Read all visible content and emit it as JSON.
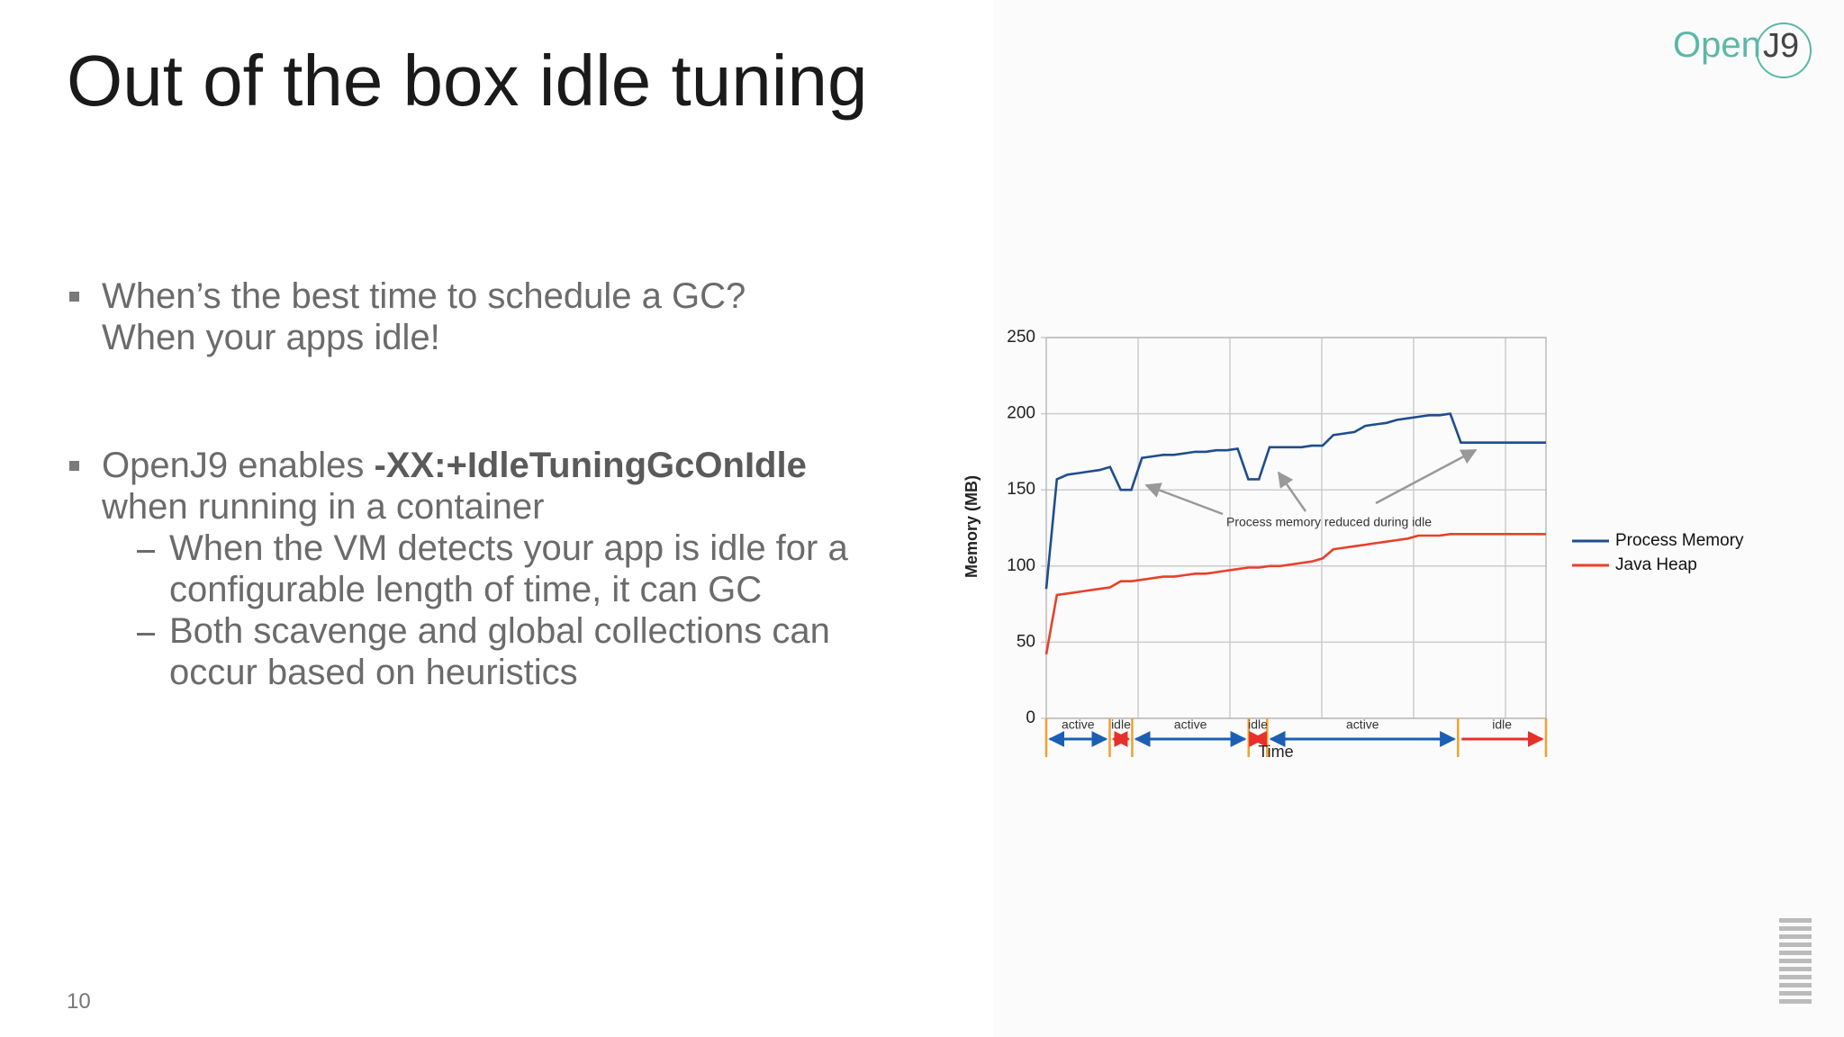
{
  "slide": {
    "title": "Out of the box idle tuning",
    "logo": {
      "text": "Open",
      "badge": "J9"
    },
    "bullet1": [
      "When’s the best time to schedule a GC?",
      "When your apps idle!"
    ],
    "bullet2": {
      "prefix": "OpenJ9 enables ",
      "code": "-XX:+IdleTuningGcOnIdle",
      "rest": "when running in a container",
      "sub": [
        "When the VM detects your app is idle for a configurable length of time, it can GC",
        "Both scavenge and global collections can occur based on heuristics"
      ]
    },
    "page_number": "10"
  },
  "chart_data": {
    "type": "line",
    "ylabel": "Memory (MB)",
    "xlabel": "Time",
    "ylim": [
      0,
      250
    ],
    "yticks": [
      0,
      50,
      100,
      150,
      200,
      250
    ],
    "grid": true,
    "legend": "right",
    "annotation": "Process memory reduced during idle",
    "phases": [
      "active",
      "idle",
      "active",
      "idle",
      "active",
      "idle"
    ],
    "series": [
      {
        "name": "Process Memory",
        "color": "#1f4e8c",
        "values": [
          85,
          157,
          160,
          161,
          162,
          163,
          165,
          150,
          150,
          171,
          172,
          173,
          173,
          174,
          175,
          175,
          176,
          176,
          177,
          157,
          157,
          178,
          178,
          178,
          178,
          179,
          179,
          186,
          187,
          188,
          192,
          193,
          194,
          196,
          197,
          198,
          199,
          199,
          200,
          181,
          181,
          181,
          181,
          181,
          181,
          181,
          181,
          181
        ]
      },
      {
        "name": "Java Heap",
        "color": "#e8402a",
        "values": [
          42,
          81,
          82,
          83,
          84,
          85,
          86,
          90,
          90,
          91,
          92,
          93,
          93,
          94,
          95,
          95,
          96,
          97,
          98,
          99,
          99,
          100,
          100,
          101,
          102,
          103,
          105,
          111,
          112,
          113,
          114,
          115,
          116,
          117,
          118,
          120,
          120,
          120,
          121,
          121,
          121,
          121,
          121,
          121,
          121,
          121,
          121,
          121
        ]
      }
    ]
  }
}
